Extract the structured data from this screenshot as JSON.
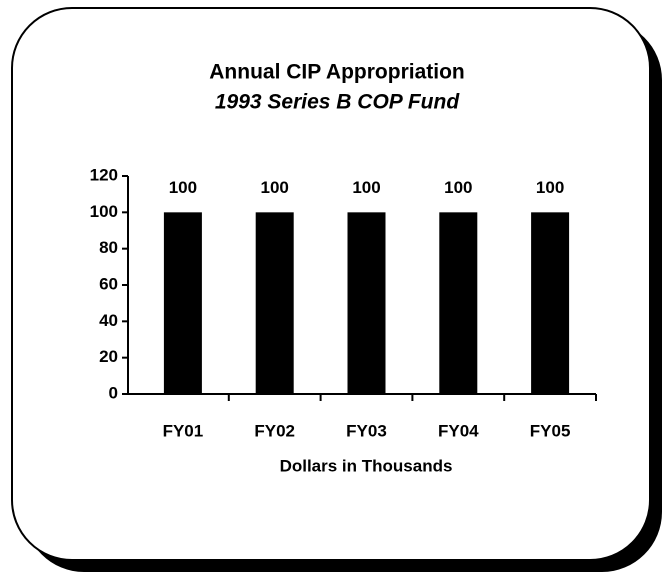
{
  "chart_data": {
    "type": "bar",
    "title": "Annual CIP Appropriation",
    "subtitle": "1993 Series B COP Fund",
    "x_label": "Dollars in Thousands",
    "categories": [
      "FY01",
      "FY02",
      "FY03",
      "FY04",
      "FY05"
    ],
    "values": [
      100,
      100,
      100,
      100,
      100
    ],
    "color": "#000000",
    "ylim": [
      0,
      120
    ],
    "yticks": [
      0,
      20,
      40,
      60,
      80,
      100,
      120
    ],
    "grid": false,
    "data_labels": true
  }
}
